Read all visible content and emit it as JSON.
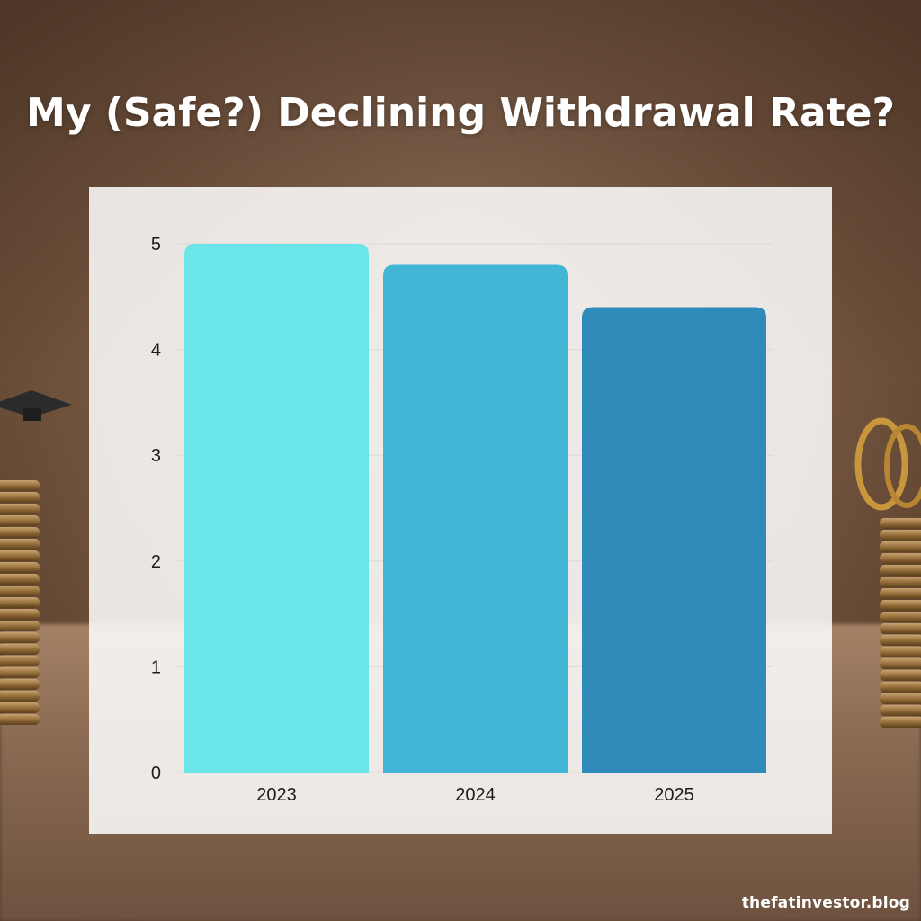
{
  "title": "My (Safe?) Declining Withdrawal Rate?",
  "watermark": "thefatinvestor.blog",
  "chart_data": {
    "type": "bar",
    "title": "My (Safe?) Declining Withdrawal Rate?",
    "xlabel": "",
    "ylabel": "",
    "categories": [
      "2023",
      "2024",
      "2025"
    ],
    "values": [
      5.0,
      4.8,
      4.4
    ],
    "colors": [
      "#6ae5e8",
      "#42b6d7",
      "#2e8bba"
    ],
    "yticks": [
      0,
      1,
      2,
      3,
      4,
      5
    ],
    "ylim": [
      0,
      5
    ],
    "grid": true,
    "legend": "none"
  }
}
